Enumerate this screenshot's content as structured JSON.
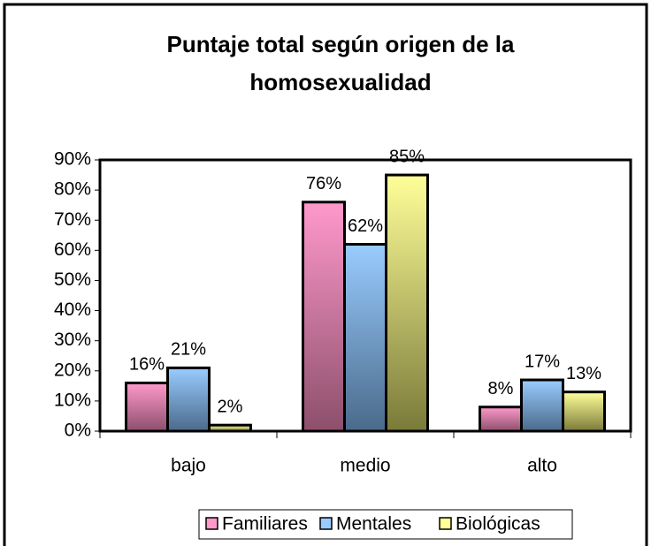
{
  "chart_data": {
    "type": "bar",
    "title": [
      "Puntaje total según origen de la",
      "homosexualidad"
    ],
    "categories": [
      "bajo",
      "medio",
      "alto"
    ],
    "series": [
      {
        "name": "Familiares",
        "color": "#ff99cc",
        "values": [
          16,
          76,
          8
        ],
        "value_labels": [
          "16%",
          "76%",
          "8%"
        ]
      },
      {
        "name": "Mentales",
        "color": "#99ccff",
        "values": [
          21,
          62,
          17
        ],
        "value_labels": [
          "21%",
          "62%",
          "17%"
        ]
      },
      {
        "name": "Biológicas",
        "color": "#ffff99",
        "values": [
          2,
          85,
          13
        ],
        "value_labels": [
          "2%",
          "85%",
          "13%"
        ]
      }
    ],
    "ylim": [
      0,
      90
    ],
    "yticks": [
      {
        "value": 0,
        "label": "0%"
      },
      {
        "value": 10,
        "label": "10%"
      },
      {
        "value": 20,
        "label": "20%"
      },
      {
        "value": 30,
        "label": "30%"
      },
      {
        "value": 40,
        "label": "40%"
      },
      {
        "value": 50,
        "label": "50%"
      },
      {
        "value": 60,
        "label": "60%"
      },
      {
        "value": 70,
        "label": "70%"
      },
      {
        "value": 80,
        "label": "80%"
      },
      {
        "value": 90,
        "label": "90%"
      }
    ],
    "legend": "bottom"
  }
}
